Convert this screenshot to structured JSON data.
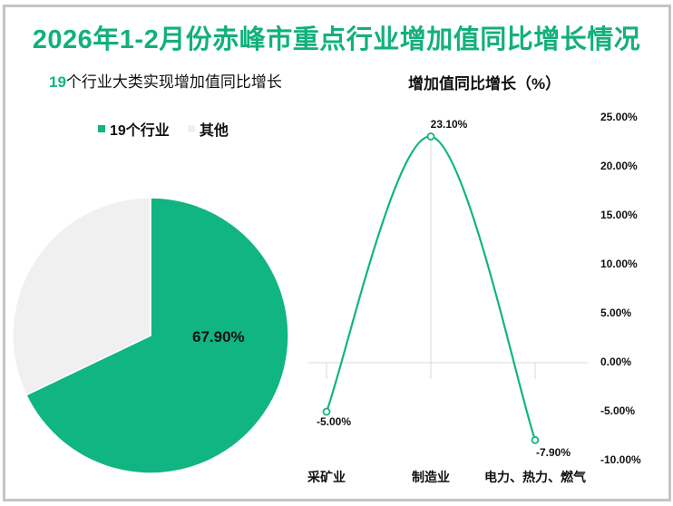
{
  "title": "2026年1-2月份赤峰市重点行业增加值同比增长情况",
  "colors": {
    "accent": "#10b581",
    "other": "#f0f0f0",
    "title": "#12b07c",
    "frame": "#c4c4c4",
    "grid": "#d9d9d9"
  },
  "left_panel": {
    "subtitle_num": "19",
    "subtitle_text": "个行业大类实现增加值同比增长",
    "legend": [
      {
        "label": "19个行业",
        "color": "#10b581"
      },
      {
        "label": "其他",
        "color": "#f0f0f0"
      }
    ]
  },
  "right_panel": {
    "subtitle": "增加值同比增长（%）"
  },
  "chart_data": [
    {
      "type": "pie",
      "title": "19个行业大类实现增加值同比增长",
      "categories": [
        "19个行业",
        "其他"
      ],
      "values": [
        67.9,
        32.1
      ],
      "labels": [
        "67.90%",
        ""
      ],
      "legend_position": "top"
    },
    {
      "type": "line",
      "title": "增加值同比增长（%）",
      "categories": [
        "采矿业",
        "制造业",
        "电力、热力、燃气"
      ],
      "series": [
        {
          "name": "增加值同比增长",
          "values": [
            -5.0,
            23.1,
            -7.9
          ],
          "labels": [
            "-5.00%",
            "23.10%",
            "-7.90%"
          ]
        }
      ],
      "smooth": true,
      "ylim": [
        -10,
        25
      ],
      "yticks": [
        "25.00%",
        "20.00%",
        "15.00%",
        "10.00%",
        "5.00%",
        "0.00%",
        "-5.00%",
        "-10.00%"
      ],
      "y_axis_position": "right",
      "grid": false
    }
  ]
}
